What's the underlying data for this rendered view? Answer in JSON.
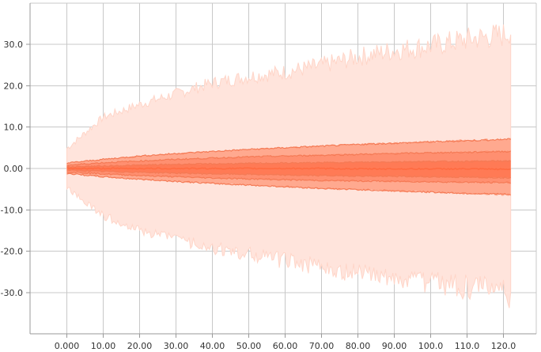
{
  "chart_data": {
    "type": "area",
    "title": "",
    "xlabel": "",
    "ylabel": "",
    "grid": true,
    "legend": "none",
    "xlim": [
      -10,
      127
    ],
    "ylim": [
      -40,
      40
    ],
    "x_ticks": [
      0,
      10,
      20,
      30,
      40,
      50,
      60,
      70,
      80,
      90,
      100,
      110,
      120
    ],
    "x_tick_labels": [
      "0.000",
      "10.00",
      "20.00",
      "30.00",
      "40.00",
      "50.00",
      "60.00",
      "70.00",
      "80.00",
      "90.00",
      "100.0",
      "110.0",
      "120.0"
    ],
    "y_ticks": [
      30,
      20,
      10,
      0,
      -10,
      -20,
      -30
    ],
    "y_tick_labels": [
      "30.0",
      "20.0",
      "10.0",
      "0.00",
      "-10.0",
      "-20.0",
      "-30.0"
    ],
    "x": [
      0,
      10,
      20,
      30,
      40,
      50,
      60,
      70,
      80,
      90,
      100,
      110,
      120,
      122
    ],
    "series": [
      {
        "band": "max",
        "values": [
          4.5,
          12.0,
          15.0,
          17.5,
          20.0,
          21.5,
          22.5,
          24.0,
          26.0,
          27.5,
          28.5,
          30.0,
          31.0,
          32.0
        ]
      },
      {
        "band": "p93",
        "values": [
          1.3,
          2.2,
          3.0,
          3.6,
          4.1,
          4.6,
          5.0,
          5.4,
          5.8,
          6.1,
          6.4,
          6.7,
          7.0,
          7.1
        ]
      },
      {
        "band": "p84",
        "values": [
          0.8,
          1.4,
          1.8,
          2.2,
          2.5,
          2.8,
          3.0,
          3.2,
          3.4,
          3.6,
          3.8,
          3.9,
          4.1,
          4.1
        ]
      },
      {
        "band": "p69",
        "values": [
          0.4,
          0.6,
          0.8,
          1.0,
          1.1,
          1.2,
          1.3,
          1.4,
          1.5,
          1.6,
          1.7,
          1.7,
          1.8,
          1.8
        ]
      },
      {
        "band": "p50",
        "values": [
          0.0,
          0.0,
          0.0,
          0.0,
          0.0,
          0.0,
          0.0,
          0.0,
          -0.1,
          -0.1,
          -0.1,
          -0.1,
          -0.2,
          -0.2
        ]
      },
      {
        "band": "p31",
        "values": [
          -0.4,
          -0.7,
          -0.9,
          -1.1,
          -1.3,
          -1.4,
          -1.6,
          -1.7,
          -1.8,
          -1.9,
          -2.0,
          -2.1,
          -2.2,
          -2.2
        ]
      },
      {
        "band": "p16",
        "values": [
          -0.8,
          -1.3,
          -1.7,
          -2.0,
          -2.3,
          -2.5,
          -2.7,
          -2.9,
          -3.0,
          -3.1,
          -3.2,
          -3.3,
          -3.4,
          -3.4
        ]
      },
      {
        "band": "p7",
        "values": [
          -1.2,
          -2.0,
          -2.6,
          -3.1,
          -3.6,
          -4.0,
          -4.4,
          -4.8,
          -5.1,
          -5.4,
          -5.7,
          -6.0,
          -6.2,
          -6.3
        ]
      },
      {
        "band": "min",
        "values": [
          -4.5,
          -11.0,
          -14.5,
          -16.5,
          -18.5,
          -20.0,
          -21.5,
          -23.0,
          -24.5,
          -25.5,
          -26.5,
          -27.5,
          -28.5,
          -29.5
        ]
      }
    ],
    "colors": {
      "outer_band": "#ffe4dc",
      "outer_edge": "#ffd5c8",
      "band_2": "#ffa98f",
      "band_3": "#ff8f70",
      "band_4": "#ff7a55",
      "median_line": "#ff6a40",
      "band_edge": "#f47a55"
    }
  }
}
